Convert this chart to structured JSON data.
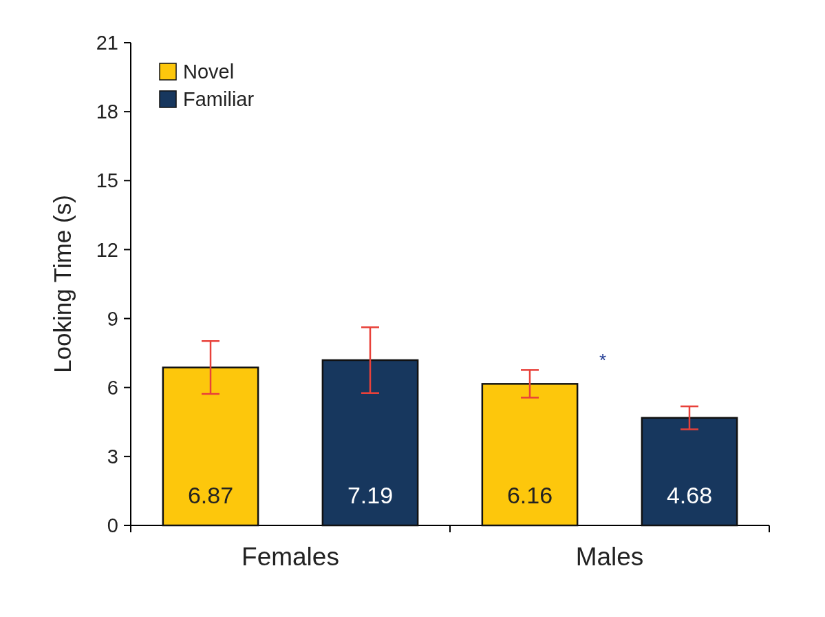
{
  "chart_data": {
    "type": "bar",
    "ylabel": "Looking Time (s)",
    "categories": [
      "Females",
      "Males"
    ],
    "series": [
      {
        "name": "Novel",
        "color": "#fdc70c",
        "values": [
          6.87,
          6.16
        ],
        "errors": [
          1.15,
          0.6
        ]
      },
      {
        "name": "Familiar",
        "color": "#17375e",
        "values": [
          7.19,
          4.68
        ],
        "errors": [
          1.43,
          0.5
        ]
      }
    ],
    "ylim": [
      0,
      21
    ],
    "yticks": [
      0,
      3,
      6,
      9,
      12,
      15,
      18,
      21
    ],
    "grid": false,
    "legend": "top left",
    "data_labels": true,
    "annotations": [
      "*"
    ]
  }
}
